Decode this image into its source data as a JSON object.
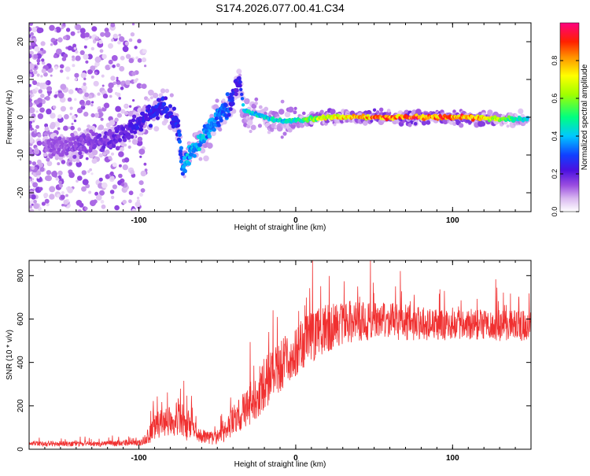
{
  "title": "S174.2026.077.00.41.C34",
  "chart_data": [
    {
      "type": "heatmap",
      "xlabel": "Height of straight line (km)",
      "ylabel": "Frequency (Hz)",
      "xlim": [
        -170,
        150
      ],
      "ylim": [
        -25,
        25
      ],
      "xticks": [
        -100,
        0,
        100
      ],
      "yticks": [
        -20,
        -10,
        0,
        10,
        20
      ],
      "colorbar": {
        "label": "Normalized spectral amplitude",
        "range": [
          0,
          1
        ],
        "ticks": [
          "0.0",
          "0.2",
          "0.4",
          "0.6",
          "0.8"
        ]
      },
      "ridge": {
        "x": [
          -150,
          -135,
          -120,
          -105,
          -95,
          -85,
          -75,
          -72,
          -68,
          -60,
          -55,
          -50,
          -45,
          -40,
          -36,
          -33,
          -28,
          -20,
          -10,
          0,
          20,
          50,
          80,
          110,
          130,
          148
        ],
        "y": [
          -8,
          -7,
          -6,
          -3,
          0,
          3,
          -2,
          -14,
          -10,
          -6,
          -3,
          0,
          2,
          5,
          10,
          2,
          1,
          0,
          -1,
          -1,
          0,
          0,
          0,
          0,
          -0.5,
          -0.5
        ],
        "amplitude": [
          0.15,
          0.18,
          0.2,
          0.25,
          0.28,
          0.3,
          0.3,
          0.4,
          0.45,
          0.45,
          0.4,
          0.4,
          0.4,
          0.3,
          0.25,
          0.5,
          0.5,
          0.5,
          0.5,
          0.55,
          0.8,
          0.95,
          1.0,
          0.95,
          0.7,
          0.5
        ]
      }
    },
    {
      "type": "line",
      "xlabel": "Height of straight line (km)",
      "ylabel": "SNR (10 * v/v)",
      "xlim": [
        -170,
        150
      ],
      "ylim": [
        0,
        870
      ],
      "xticks": [
        -100,
        0,
        100
      ],
      "yticks": [
        0,
        200,
        400,
        600,
        800
      ],
      "series": [
        {
          "name": "SNR",
          "color": "#f03030",
          "envelope_x": [
            -170,
            -130,
            -100,
            -95,
            -90,
            -80,
            -75,
            -70,
            -60,
            -50,
            -45,
            -40,
            -30,
            -20,
            -10,
            0,
            10,
            20,
            30,
            40,
            60,
            80,
            100,
            120,
            140,
            150
          ],
          "envelope_mean": [
            25,
            25,
            30,
            50,
            100,
            140,
            150,
            110,
            60,
            50,
            80,
            130,
            200,
            300,
            380,
            450,
            520,
            560,
            580,
            590,
            590,
            580,
            570,
            570,
            570,
            570
          ],
          "envelope_amp": [
            15,
            15,
            20,
            40,
            70,
            100,
            110,
            90,
            40,
            40,
            60,
            90,
            120,
            150,
            150,
            150,
            150,
            140,
            130,
            120,
            110,
            100,
            90,
            90,
            90,
            90
          ]
        }
      ]
    }
  ]
}
